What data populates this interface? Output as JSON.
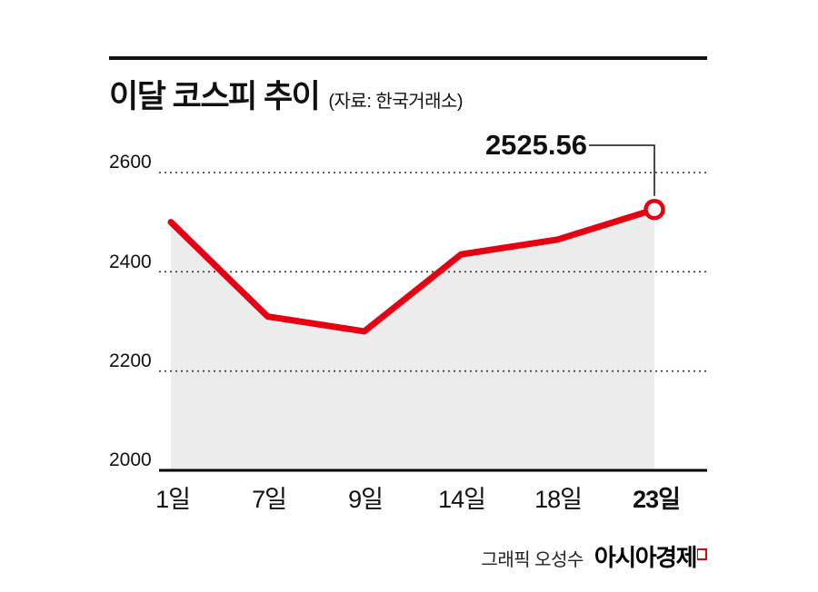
{
  "header": {
    "title": "이달 코스피 추이",
    "source": "(자료: 한국거래소)"
  },
  "chart_data": {
    "type": "line",
    "title": "이달 코스피 추이",
    "source_note": "(자료: 한국거래소)",
    "categories": [
      "1일",
      "7일",
      "9일",
      "14일",
      "18일",
      "23일"
    ],
    "values": [
      2500,
      2310,
      2280,
      2435,
      2465,
      2525.56
    ],
    "yticks": [
      2600,
      2400,
      2200,
      2000
    ],
    "ylim": [
      2000,
      2650
    ],
    "annotation": {
      "label": "2525.56",
      "point_index": 5
    },
    "line_color": "#e60012",
    "area_color": "#ececec",
    "grid": "dotted horizontal gridlines at 2600/2400/2200, solid axis at 2000",
    "legend": "none"
  },
  "footer": {
    "credit": "그래픽 오성수",
    "brand": "아시아경제"
  }
}
